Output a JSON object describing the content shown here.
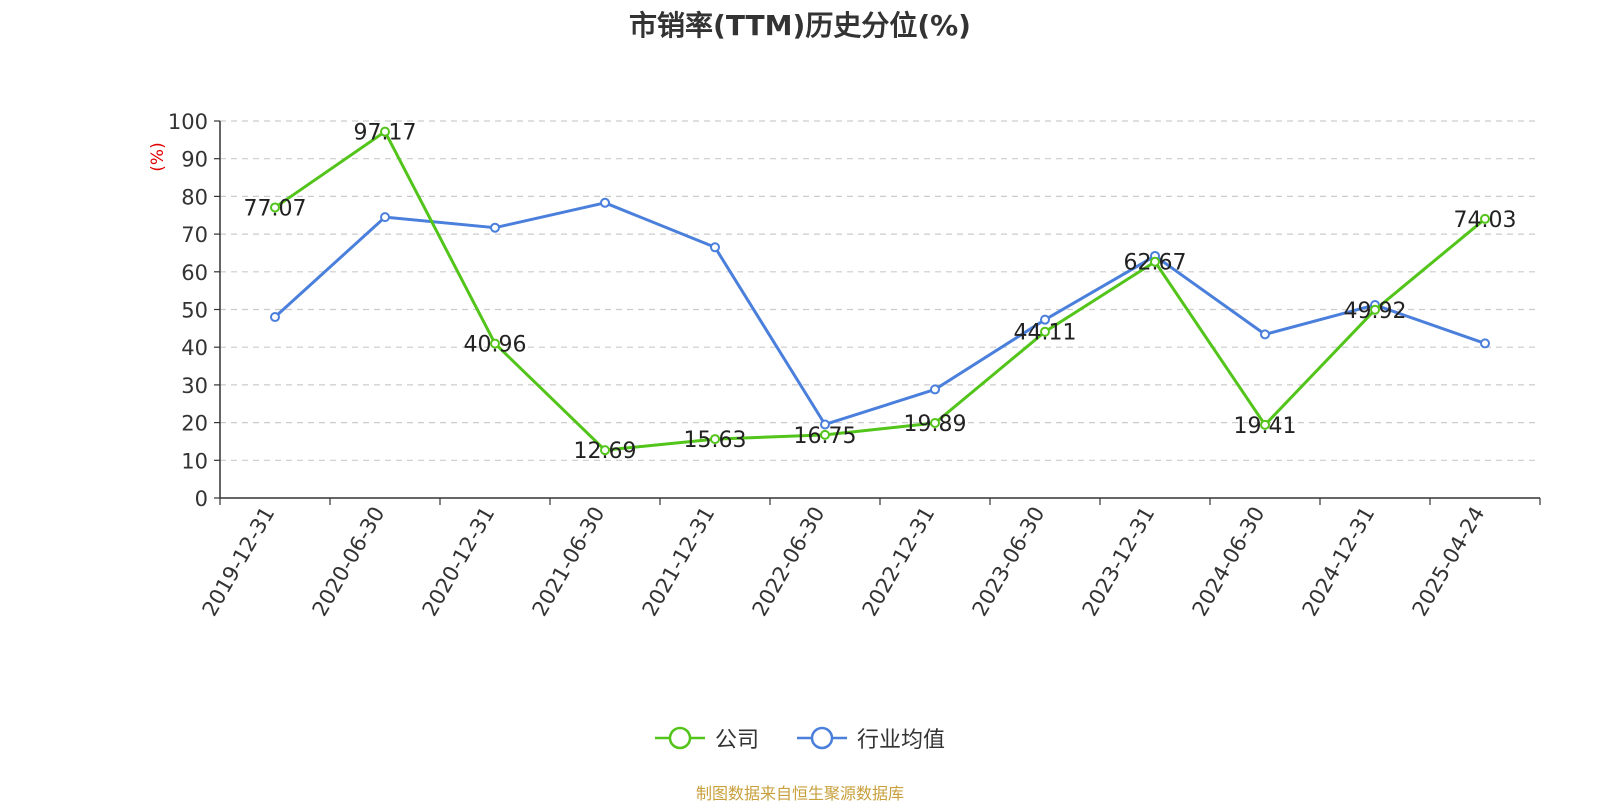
{
  "chart_data": {
    "type": "line",
    "title": "市销率(TTM)历史分位(%)",
    "ylabel": "(%)",
    "ylim": [
      0,
      100
    ],
    "yticks": [
      0,
      10,
      20,
      30,
      40,
      50,
      60,
      70,
      80,
      90,
      100
    ],
    "grid": true,
    "legend_position": "bottom-center",
    "categories": [
      "2019-12-31",
      "2020-06-30",
      "2020-12-31",
      "2021-06-30",
      "2021-12-31",
      "2022-06-30",
      "2022-12-31",
      "2023-06-30",
      "2023-12-31",
      "2024-06-30",
      "2024-12-31",
      "2025-04-24"
    ],
    "series": [
      {
        "name": "公司",
        "color": "#52c41a",
        "values": [
          77.07,
          97.17,
          40.96,
          12.69,
          15.63,
          16.75,
          19.89,
          44.11,
          62.67,
          19.41,
          49.92,
          74.03
        ],
        "data_labels": [
          "77.07",
          "97.17",
          "40.96",
          "12.69",
          "15.63",
          "16.75",
          "19.89",
          "44.11",
          "62.67",
          "19.41",
          "49.92",
          "74.03"
        ]
      },
      {
        "name": "行业均值",
        "color": "#4a7fdc",
        "values": [
          48.0,
          74.5,
          71.7,
          78.3,
          66.5,
          19.5,
          28.8,
          47.3,
          64.2,
          43.4,
          51.2,
          41.0
        ]
      }
    ]
  },
  "footer": "制图数据来自恒生聚源数据库"
}
